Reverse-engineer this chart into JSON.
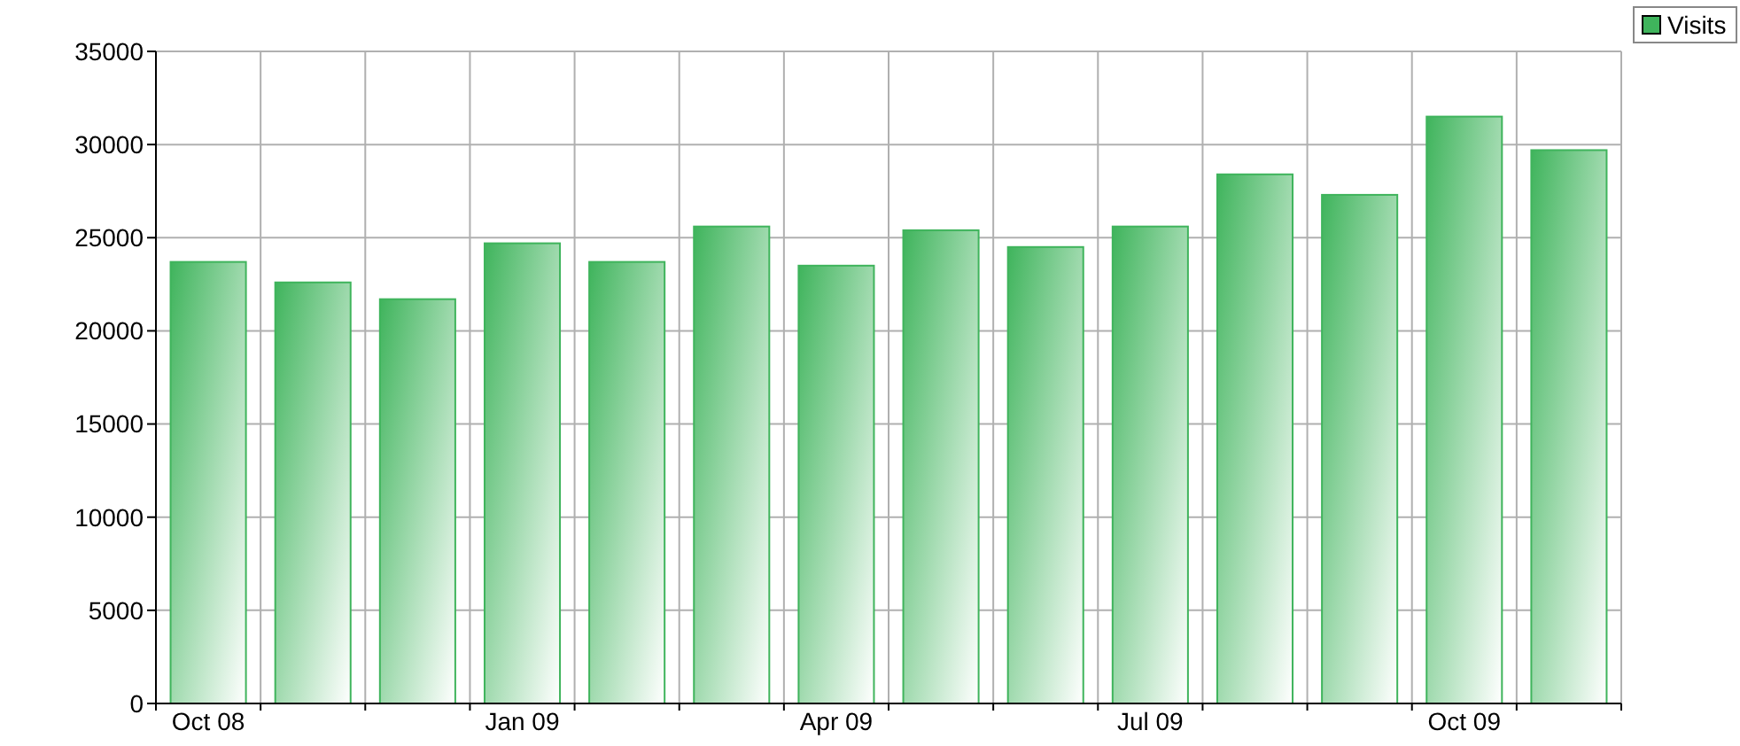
{
  "chart_data": {
    "type": "bar",
    "categories": [
      "Oct 08",
      null,
      null,
      "Jan 09",
      null,
      null,
      "Apr 09",
      null,
      null,
      "Jul 09",
      null,
      null,
      "Oct 09",
      null
    ],
    "series": [
      {
        "name": "Visits",
        "color": "#3fb45c",
        "values": [
          23700,
          22600,
          21700,
          24700,
          23700,
          25600,
          23500,
          25400,
          24500,
          25600,
          28400,
          27300,
          31500,
          29700
        ]
      }
    ],
    "ylim": [
      0,
      35000
    ],
    "yticks": [
      0,
      5000,
      10000,
      15000,
      20000,
      25000,
      30000,
      35000
    ],
    "grid": true,
    "legend": "top right"
  }
}
